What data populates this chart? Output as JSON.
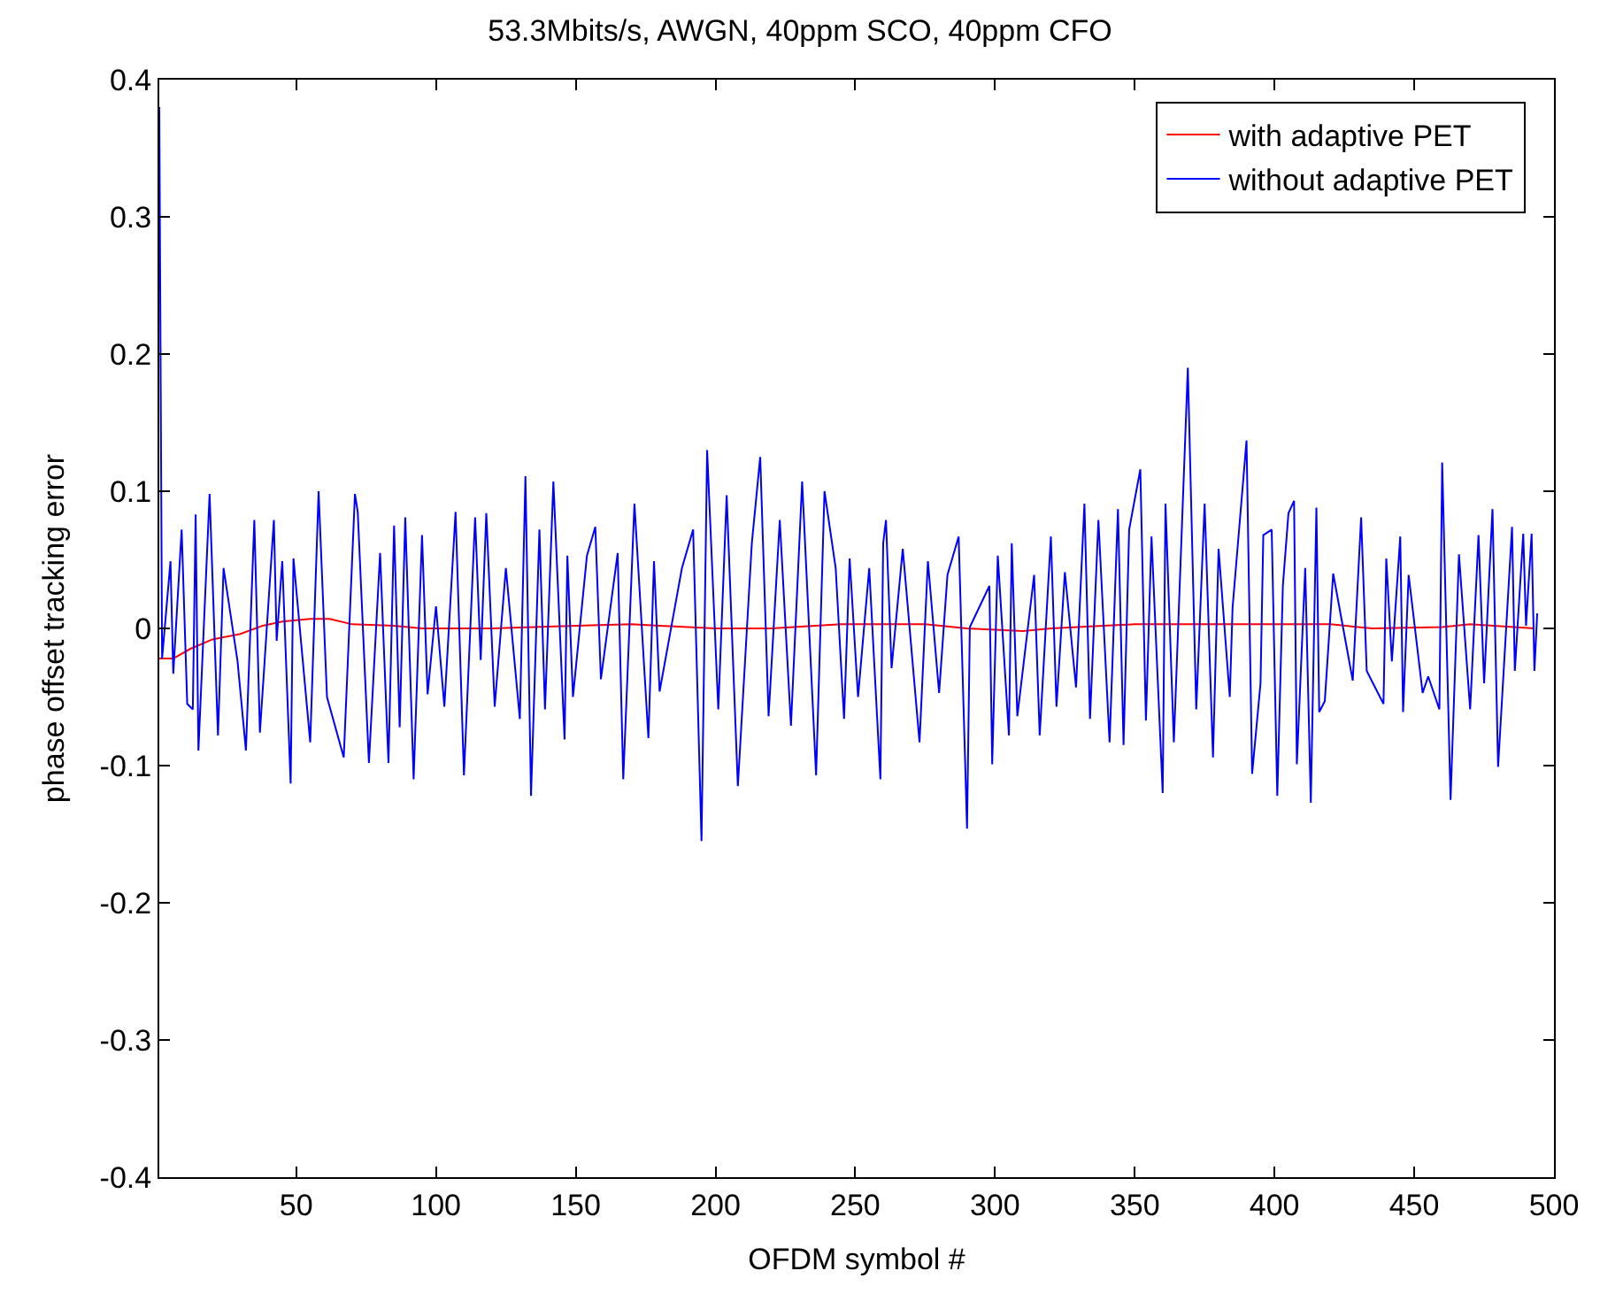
{
  "chart_data": {
    "type": "line",
    "title": "53.3Mbits/s, AWGN, 40ppm SCO, 40ppm CFO",
    "xlabel": "OFDM symbol #",
    "ylabel": "phase offset tracking error",
    "xlim": [
      1,
      500
    ],
    "ylim": [
      -0.4,
      0.4
    ],
    "xticks": [
      50,
      100,
      150,
      200,
      250,
      300,
      350,
      400,
      450,
      500
    ],
    "yticks": [
      -0.4,
      -0.3,
      -0.2,
      -0.1,
      {
        "value": 0,
        "label": "0"
      },
      0.1,
      0.2,
      0.3,
      0.4
    ],
    "grid": false,
    "legend": "top right",
    "marker": "none",
    "line_style": "solid",
    "series": [
      {
        "name": "with adaptive PET",
        "color": "#ff0000",
        "x": [
          1,
          6,
          12,
          20,
          30,
          38,
          45,
          55,
          62,
          70,
          85,
          95,
          120,
          150,
          170,
          180,
          200,
          220,
          245,
          275,
          290,
          310,
          320,
          350,
          360,
          385,
          420,
          435,
          460,
          470,
          493
        ],
        "values": [
          -0.022,
          -0.022,
          -0.015,
          -0.008,
          -0.004,
          0.002,
          0.005,
          0.007,
          0.007,
          0.003,
          0.002,
          0,
          0,
          0.002,
          0.003,
          0.002,
          0,
          0,
          0.003,
          0.003,
          0,
          -0.002,
          0,
          0.003,
          0.003,
          0.003,
          0.003,
          0,
          0.001,
          0.003,
          0
        ]
      },
      {
        "name": "without adaptive PET",
        "color": "#0000ff",
        "x": [
          1,
          2,
          5,
          6,
          9,
          11,
          13,
          14,
          15,
          19,
          22,
          24,
          29,
          32,
          35,
          37,
          42,
          43,
          45,
          48,
          49,
          55,
          58,
          61,
          67,
          71,
          72,
          76,
          80,
          83,
          85,
          87,
          89,
          92,
          95,
          97,
          100,
          103,
          107,
          110,
          114,
          116,
          118,
          121,
          125,
          130,
          132,
          134,
          137,
          139,
          142,
          146,
          147,
          149,
          154,
          157,
          159,
          165,
          167,
          171,
          176,
          178,
          180,
          188,
          192,
          195,
          197,
          201,
          204,
          208,
          213,
          216,
          219,
          223,
          227,
          231,
          236,
          239,
          243,
          246,
          248,
          251,
          255,
          259,
          260,
          261,
          263,
          267,
          273,
          276,
          280,
          283,
          287,
          290,
          291,
          298,
          299,
          301,
          305,
          306,
          308,
          314,
          316,
          320,
          322,
          325,
          329,
          332,
          334,
          337,
          341,
          344,
          346,
          348,
          352,
          354,
          356,
          360,
          361,
          364,
          369,
          372,
          375,
          378,
          380,
          384,
          385,
          390,
          392,
          395,
          396,
          399,
          401,
          403,
          405,
          407,
          408,
          411,
          413,
          415,
          416,
          418,
          421,
          428,
          431,
          433,
          439,
          440,
          442,
          445,
          446,
          448,
          453,
          455,
          459,
          460,
          463,
          466,
          470,
          473,
          475,
          478,
          480,
          485,
          486,
          489,
          490,
          492,
          493,
          494
        ],
        "values": [
          0.38,
          -0.022,
          0.049,
          -0.033,
          0.072,
          -0.055,
          -0.059,
          0.083,
          -0.089,
          0.098,
          -0.078,
          0.044,
          -0.024,
          -0.089,
          0.079,
          -0.076,
          0.079,
          -0.009,
          0.049,
          -0.113,
          0.051,
          -0.083,
          0.1,
          -0.05,
          -0.094,
          0.098,
          0.085,
          -0.098,
          0.055,
          -0.098,
          0.075,
          -0.072,
          0.081,
          -0.11,
          0.068,
          -0.048,
          0.016,
          -0.057,
          0.085,
          -0.107,
          0.081,
          -0.023,
          0.084,
          -0.057,
          0.044,
          -0.066,
          0.111,
          -0.122,
          0.072,
          -0.059,
          0.107,
          -0.081,
          0.053,
          -0.05,
          0.053,
          0.074,
          -0.037,
          0.055,
          -0.11,
          0.091,
          -0.08,
          0.049,
          -0.046,
          0.044,
          0.072,
          -0.155,
          0.13,
          -0.059,
          0.097,
          -0.115,
          0.062,
          0.125,
          -0.064,
          0.079,
          -0.071,
          0.107,
          -0.107,
          0.1,
          0.044,
          -0.066,
          0.051,
          -0.05,
          0.044,
          -0.11,
          0.062,
          0.079,
          -0.029,
          0.058,
          -0.083,
          0.049,
          -0.047,
          0.039,
          0.067,
          -0.146,
          0.001,
          0.031,
          -0.099,
          0.053,
          -0.078,
          0.062,
          -0.064,
          0.039,
          -0.078,
          0.067,
          -0.057,
          0.041,
          -0.043,
          0.091,
          -0.066,
          0.079,
          -0.083,
          0.087,
          -0.085,
          0.072,
          0.116,
          -0.067,
          0.067,
          -0.12,
          0.091,
          -0.083,
          0.19,
          -0.059,
          0.091,
          -0.094,
          0.058,
          -0.05,
          0.015,
          0.137,
          -0.106,
          -0.04,
          0.068,
          0.072,
          -0.122,
          0.031,
          0.084,
          0.093,
          -0.099,
          0.044,
          -0.127,
          0.088,
          -0.061,
          -0.053,
          0.04,
          -0.038,
          0.081,
          -0.031,
          -0.055,
          0.051,
          -0.024,
          0.067,
          -0.061,
          0.039,
          -0.047,
          -0.035,
          -0.059,
          0.121,
          -0.125,
          0.054,
          -0.059,
          0.068,
          -0.04,
          0.087,
          -0.101,
          0.074,
          -0.031,
          0.069,
          0.002,
          0.069,
          -0.031,
          0.011
        ]
      }
    ]
  }
}
